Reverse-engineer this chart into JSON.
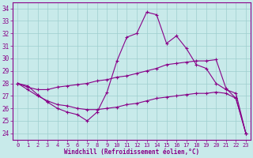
{
  "xlabel": "Windchill (Refroidissement éolien,°C)",
  "xlim": [
    -0.5,
    23.5
  ],
  "ylim": [
    23.5,
    34.5
  ],
  "yticks": [
    24,
    25,
    26,
    27,
    28,
    29,
    30,
    31,
    32,
    33,
    34
  ],
  "xticks": [
    0,
    1,
    2,
    3,
    4,
    5,
    6,
    7,
    8,
    9,
    10,
    11,
    12,
    13,
    14,
    15,
    16,
    17,
    18,
    19,
    20,
    21,
    22,
    23
  ],
  "bg_color": "#c8eaea",
  "line_color": "#880088",
  "grid_color": "#9ecece",
  "lines": [
    [
      28.0,
      27.8,
      27.1,
      26.5,
      26.0,
      25.7,
      25.5,
      25.0,
      25.7,
      27.3,
      29.8,
      31.7,
      32.0,
      33.7,
      33.5,
      31.2,
      31.8,
      30.8,
      29.5,
      29.2,
      28.0,
      27.5,
      27.2,
      24.0
    ],
    [
      28.0,
      27.7,
      27.5,
      27.5,
      27.7,
      27.8,
      27.9,
      28.0,
      28.2,
      28.3,
      28.5,
      28.6,
      28.8,
      29.0,
      29.2,
      29.5,
      29.6,
      29.7,
      29.8,
      29.8,
      29.9,
      27.6,
      26.8,
      24.0
    ],
    [
      28.0,
      27.5,
      27.0,
      26.6,
      26.3,
      26.2,
      26.0,
      25.9,
      25.9,
      26.0,
      26.1,
      26.3,
      26.4,
      26.6,
      26.8,
      26.9,
      27.0,
      27.1,
      27.2,
      27.2,
      27.3,
      27.2,
      26.8,
      24.0
    ]
  ]
}
